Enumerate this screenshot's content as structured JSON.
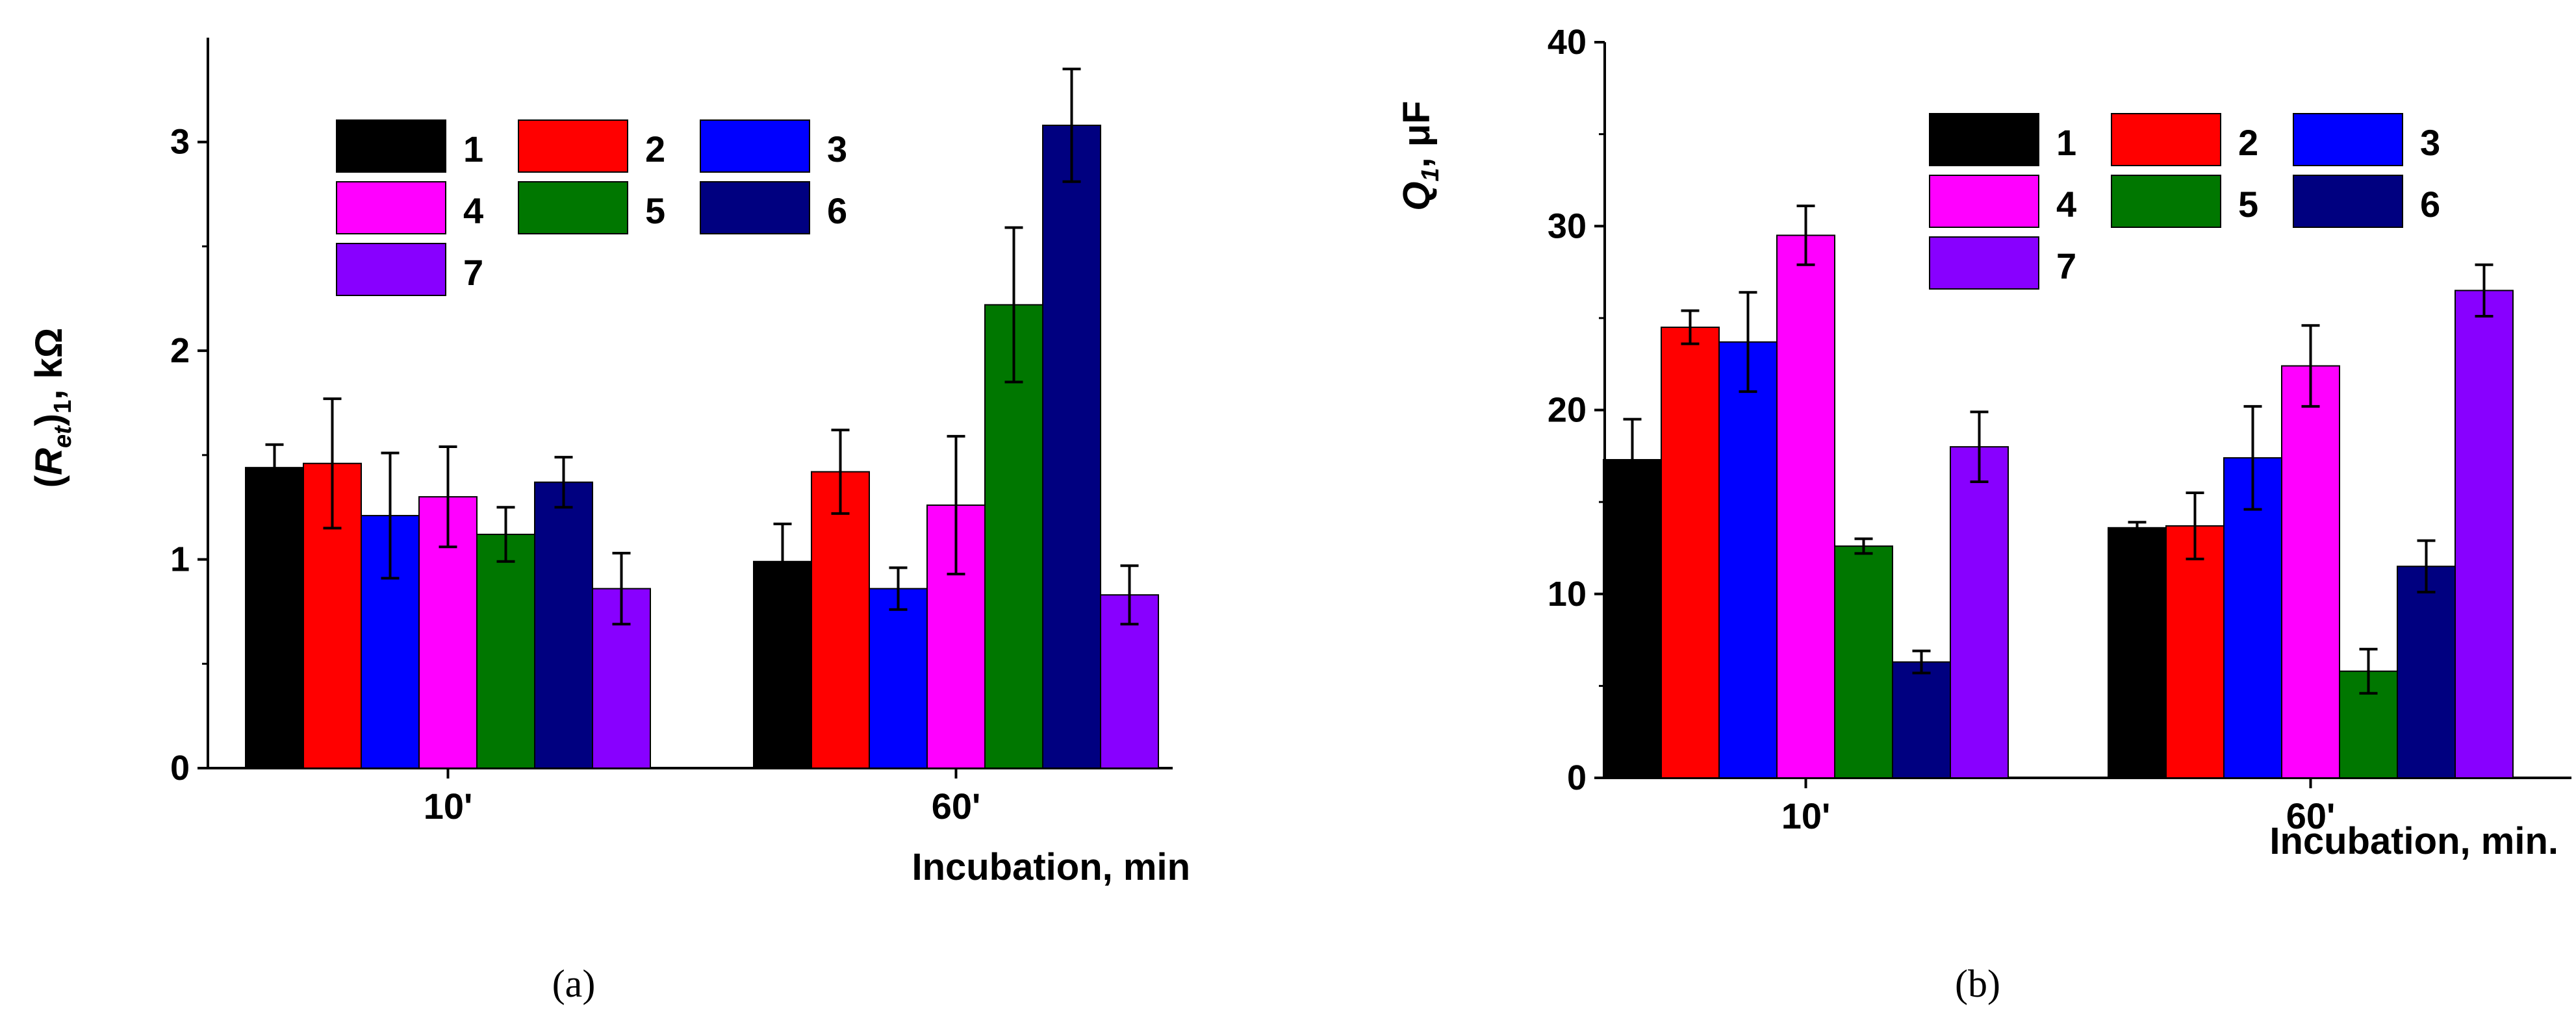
{
  "chart_data": [
    {
      "type": "bar",
      "panel_label": "(a)",
      "title": "",
      "ylabel": {
        "open": "(",
        "main": "R",
        "sub": "et",
        "close": ")",
        "sub2": "1",
        "unit": ", kΩ"
      },
      "xlabel": "Incubation, min",
      "ylim": [
        0,
        3.5
      ],
      "yticks": [
        0,
        1,
        2,
        3
      ],
      "categories": [
        "10'",
        "60'"
      ],
      "legend_position": "upper-center",
      "series": [
        {
          "name": "1",
          "color": "#000000",
          "values": [
            1.44,
            0.99
          ],
          "errors": [
            0.11,
            0.18
          ]
        },
        {
          "name": "2",
          "color": "#ff0000",
          "values": [
            1.46,
            1.42
          ],
          "errors": [
            0.31,
            0.2
          ]
        },
        {
          "name": "3",
          "color": "#0000ff",
          "values": [
            1.21,
            0.86
          ],
          "errors": [
            0.3,
            0.1
          ]
        },
        {
          "name": "4",
          "color": "#ff00ff",
          "values": [
            1.3,
            1.26
          ],
          "errors": [
            0.24,
            0.33
          ]
        },
        {
          "name": "5",
          "color": "#007700",
          "values": [
            1.12,
            2.22
          ],
          "errors": [
            0.13,
            0.37
          ]
        },
        {
          "name": "6",
          "color": "#000080",
          "values": [
            1.37,
            3.08
          ],
          "errors": [
            0.12,
            0.27
          ]
        },
        {
          "name": "7",
          "color": "#8800ff",
          "values": [
            0.86,
            0.83
          ],
          "errors": [
            0.17,
            0.14
          ]
        }
      ]
    },
    {
      "type": "bar",
      "panel_label": "(b)",
      "title": "",
      "ylabel": {
        "main": "Q",
        "sub": "1",
        "unit": ", μF"
      },
      "xlabel": "Incubation, min.",
      "ylim": [
        0,
        40
      ],
      "yticks": [
        0,
        10,
        20,
        30,
        40
      ],
      "categories": [
        "10'",
        "60'"
      ],
      "legend_position": "upper-right",
      "series": [
        {
          "name": "1",
          "color": "#000000",
          "values": [
            17.3,
            13.6
          ],
          "errors": [
            2.2,
            0.3
          ]
        },
        {
          "name": "2",
          "color": "#ff0000",
          "values": [
            24.5,
            13.7
          ],
          "errors": [
            0.9,
            1.8
          ]
        },
        {
          "name": "3",
          "color": "#0000ff",
          "values": [
            23.7,
            17.4
          ],
          "errors": [
            2.7,
            2.8
          ]
        },
        {
          "name": "4",
          "color": "#ff00ff",
          "values": [
            29.5,
            22.4
          ],
          "errors": [
            1.6,
            2.2
          ]
        },
        {
          "name": "5",
          "color": "#007700",
          "values": [
            12.6,
            5.8
          ],
          "errors": [
            0.4,
            1.2
          ]
        },
        {
          "name": "6",
          "color": "#000080",
          "values": [
            6.3,
            11.5
          ],
          "errors": [
            0.6,
            1.4
          ]
        },
        {
          "name": "7",
          "color": "#8800ff",
          "values": [
            18.0,
            26.5
          ],
          "errors": [
            1.9,
            1.4
          ]
        }
      ]
    }
  ]
}
